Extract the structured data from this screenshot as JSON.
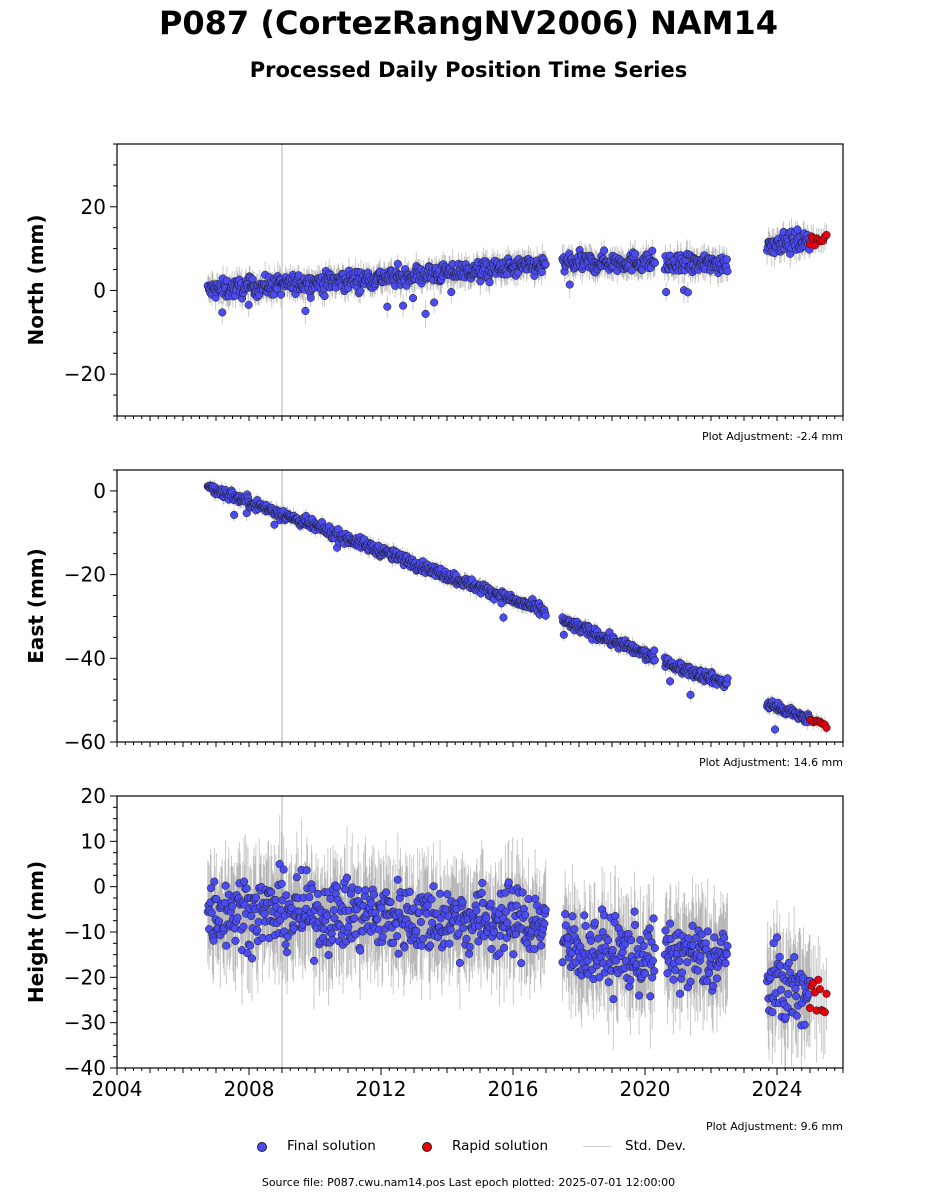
{
  "title": "P087 (CortezRangNV2006) NAM14",
  "subtitle": "Processed Daily Position Time Series",
  "legend": {
    "final": "Final solution",
    "rapid": "Rapid solution",
    "std": "Std. Dev."
  },
  "source_line": "Source file: P087.cwu.nam14.pos  Last epoch plotted: 2025-07-01 12:00:00",
  "colors": {
    "final": "#4b4bf2",
    "rapid": "#e8000b",
    "std": "#aaaaaa",
    "vline": "#cccccc"
  },
  "chart_data": [
    {
      "type": "scatter",
      "ylabel": "North (mm)",
      "adjustment": "Plot Adjustment: -2.4 mm",
      "xlim": [
        2004,
        2026
      ],
      "ylim": [
        -30,
        35
      ],
      "yticks": [
        -20,
        0,
        20
      ],
      "ytick_labels": [
        "−20",
        "0",
        "20"
      ],
      "yminor_step": 5,
      "vertical_line_x": 2009.0,
      "gaps": [
        [
          2017.0,
          2017.5
        ],
        [
          2020.3,
          2020.6
        ],
        [
          2022.5,
          2023.7
        ]
      ],
      "final_ranges": [
        [
          2006.75,
          2017.0
        ],
        [
          2017.5,
          2020.3
        ],
        [
          2020.6,
          2022.5
        ],
        [
          2023.7,
          2025.0
        ]
      ],
      "rapid_range": [
        2025.0,
        2025.5
      ],
      "trend": [
        {
          "x": 2006.75,
          "y": 0
        },
        {
          "x": 2017.0,
          "y": 6
        },
        {
          "x": 2017.5,
          "y": 6.5
        },
        {
          "x": 2020.3,
          "y": 7
        },
        {
          "x": 2020.6,
          "y": 6
        },
        {
          "x": 2022.5,
          "y": 6.5
        },
        {
          "x": 2023.7,
          "y": 11
        },
        {
          "x": 2025.5,
          "y": 12.5
        }
      ],
      "noise_mm": 1.6,
      "outlier_fraction": 0.02,
      "outlier_depth_mm": -8
    },
    {
      "type": "scatter",
      "ylabel": "East (mm)",
      "adjustment": "Plot Adjustment: 14.6 mm",
      "xlim": [
        2004,
        2026
      ],
      "ylim": [
        -60,
        5
      ],
      "yticks": [
        -60,
        -40,
        -20,
        0
      ],
      "ytick_labels": [
        "−60",
        "−40",
        "−20",
        "0"
      ],
      "yminor_step": 5,
      "vertical_line_x": 2009.0,
      "gaps": [
        [
          2017.0,
          2017.5
        ],
        [
          2020.3,
          2020.6
        ],
        [
          2022.5,
          2023.7
        ]
      ],
      "final_ranges": [
        [
          2006.75,
          2017.0
        ],
        [
          2017.5,
          2020.3
        ],
        [
          2020.6,
          2022.5
        ],
        [
          2023.7,
          2025.0
        ]
      ],
      "rapid_range": [
        2025.0,
        2025.5
      ],
      "trend": [
        {
          "x": 2006.75,
          "y": 1
        },
        {
          "x": 2017.0,
          "y": -29
        },
        {
          "x": 2017.5,
          "y": -31
        },
        {
          "x": 2020.3,
          "y": -40
        },
        {
          "x": 2020.6,
          "y": -41
        },
        {
          "x": 2022.5,
          "y": -46
        },
        {
          "x": 2023.7,
          "y": -51
        },
        {
          "x": 2025.5,
          "y": -56
        }
      ],
      "noise_mm": 0.9,
      "outlier_fraction": 0.01,
      "outlier_depth_mm": -4
    },
    {
      "type": "scatter",
      "ylabel": "Height (mm)",
      "adjustment": "Plot Adjustment: 9.6 mm",
      "xlim": [
        2004,
        2026
      ],
      "ylim": [
        -40,
        20
      ],
      "yticks": [
        -40,
        -30,
        -20,
        -10,
        0,
        10,
        20
      ],
      "ytick_labels": [
        "−40",
        "−30",
        "−20",
        "−10",
        "0",
        "10",
        "20"
      ],
      "yminor_step": 2.5,
      "xticks": [
        2004,
        2008,
        2012,
        2016,
        2020,
        2024
      ],
      "xtick_labels": [
        "2004",
        "2008",
        "2012",
        "2016",
        "2020",
        "2024"
      ],
      "vertical_line_x": 2009.0,
      "gaps": [
        [
          2017.0,
          2017.5
        ],
        [
          2020.3,
          2020.6
        ],
        [
          2022.5,
          2023.7
        ]
      ],
      "final_ranges": [
        [
          2006.75,
          2017.0
        ],
        [
          2017.5,
          2020.3
        ],
        [
          2020.6,
          2022.5
        ],
        [
          2023.7,
          2025.0
        ]
      ],
      "rapid_range": [
        2025.0,
        2025.5
      ],
      "trend": [
        {
          "x": 2006.75,
          "y": -5
        },
        {
          "x": 2017.0,
          "y": -8
        },
        {
          "x": 2017.5,
          "y": -13
        },
        {
          "x": 2020.3,
          "y": -16
        },
        {
          "x": 2020.6,
          "y": -15
        },
        {
          "x": 2022.5,
          "y": -16
        },
        {
          "x": 2023.7,
          "y": -21
        },
        {
          "x": 2025.5,
          "y": -25
        }
      ],
      "noise_mm": 5.5,
      "outlier_fraction": 0.0,
      "outlier_depth_mm": 0
    }
  ]
}
